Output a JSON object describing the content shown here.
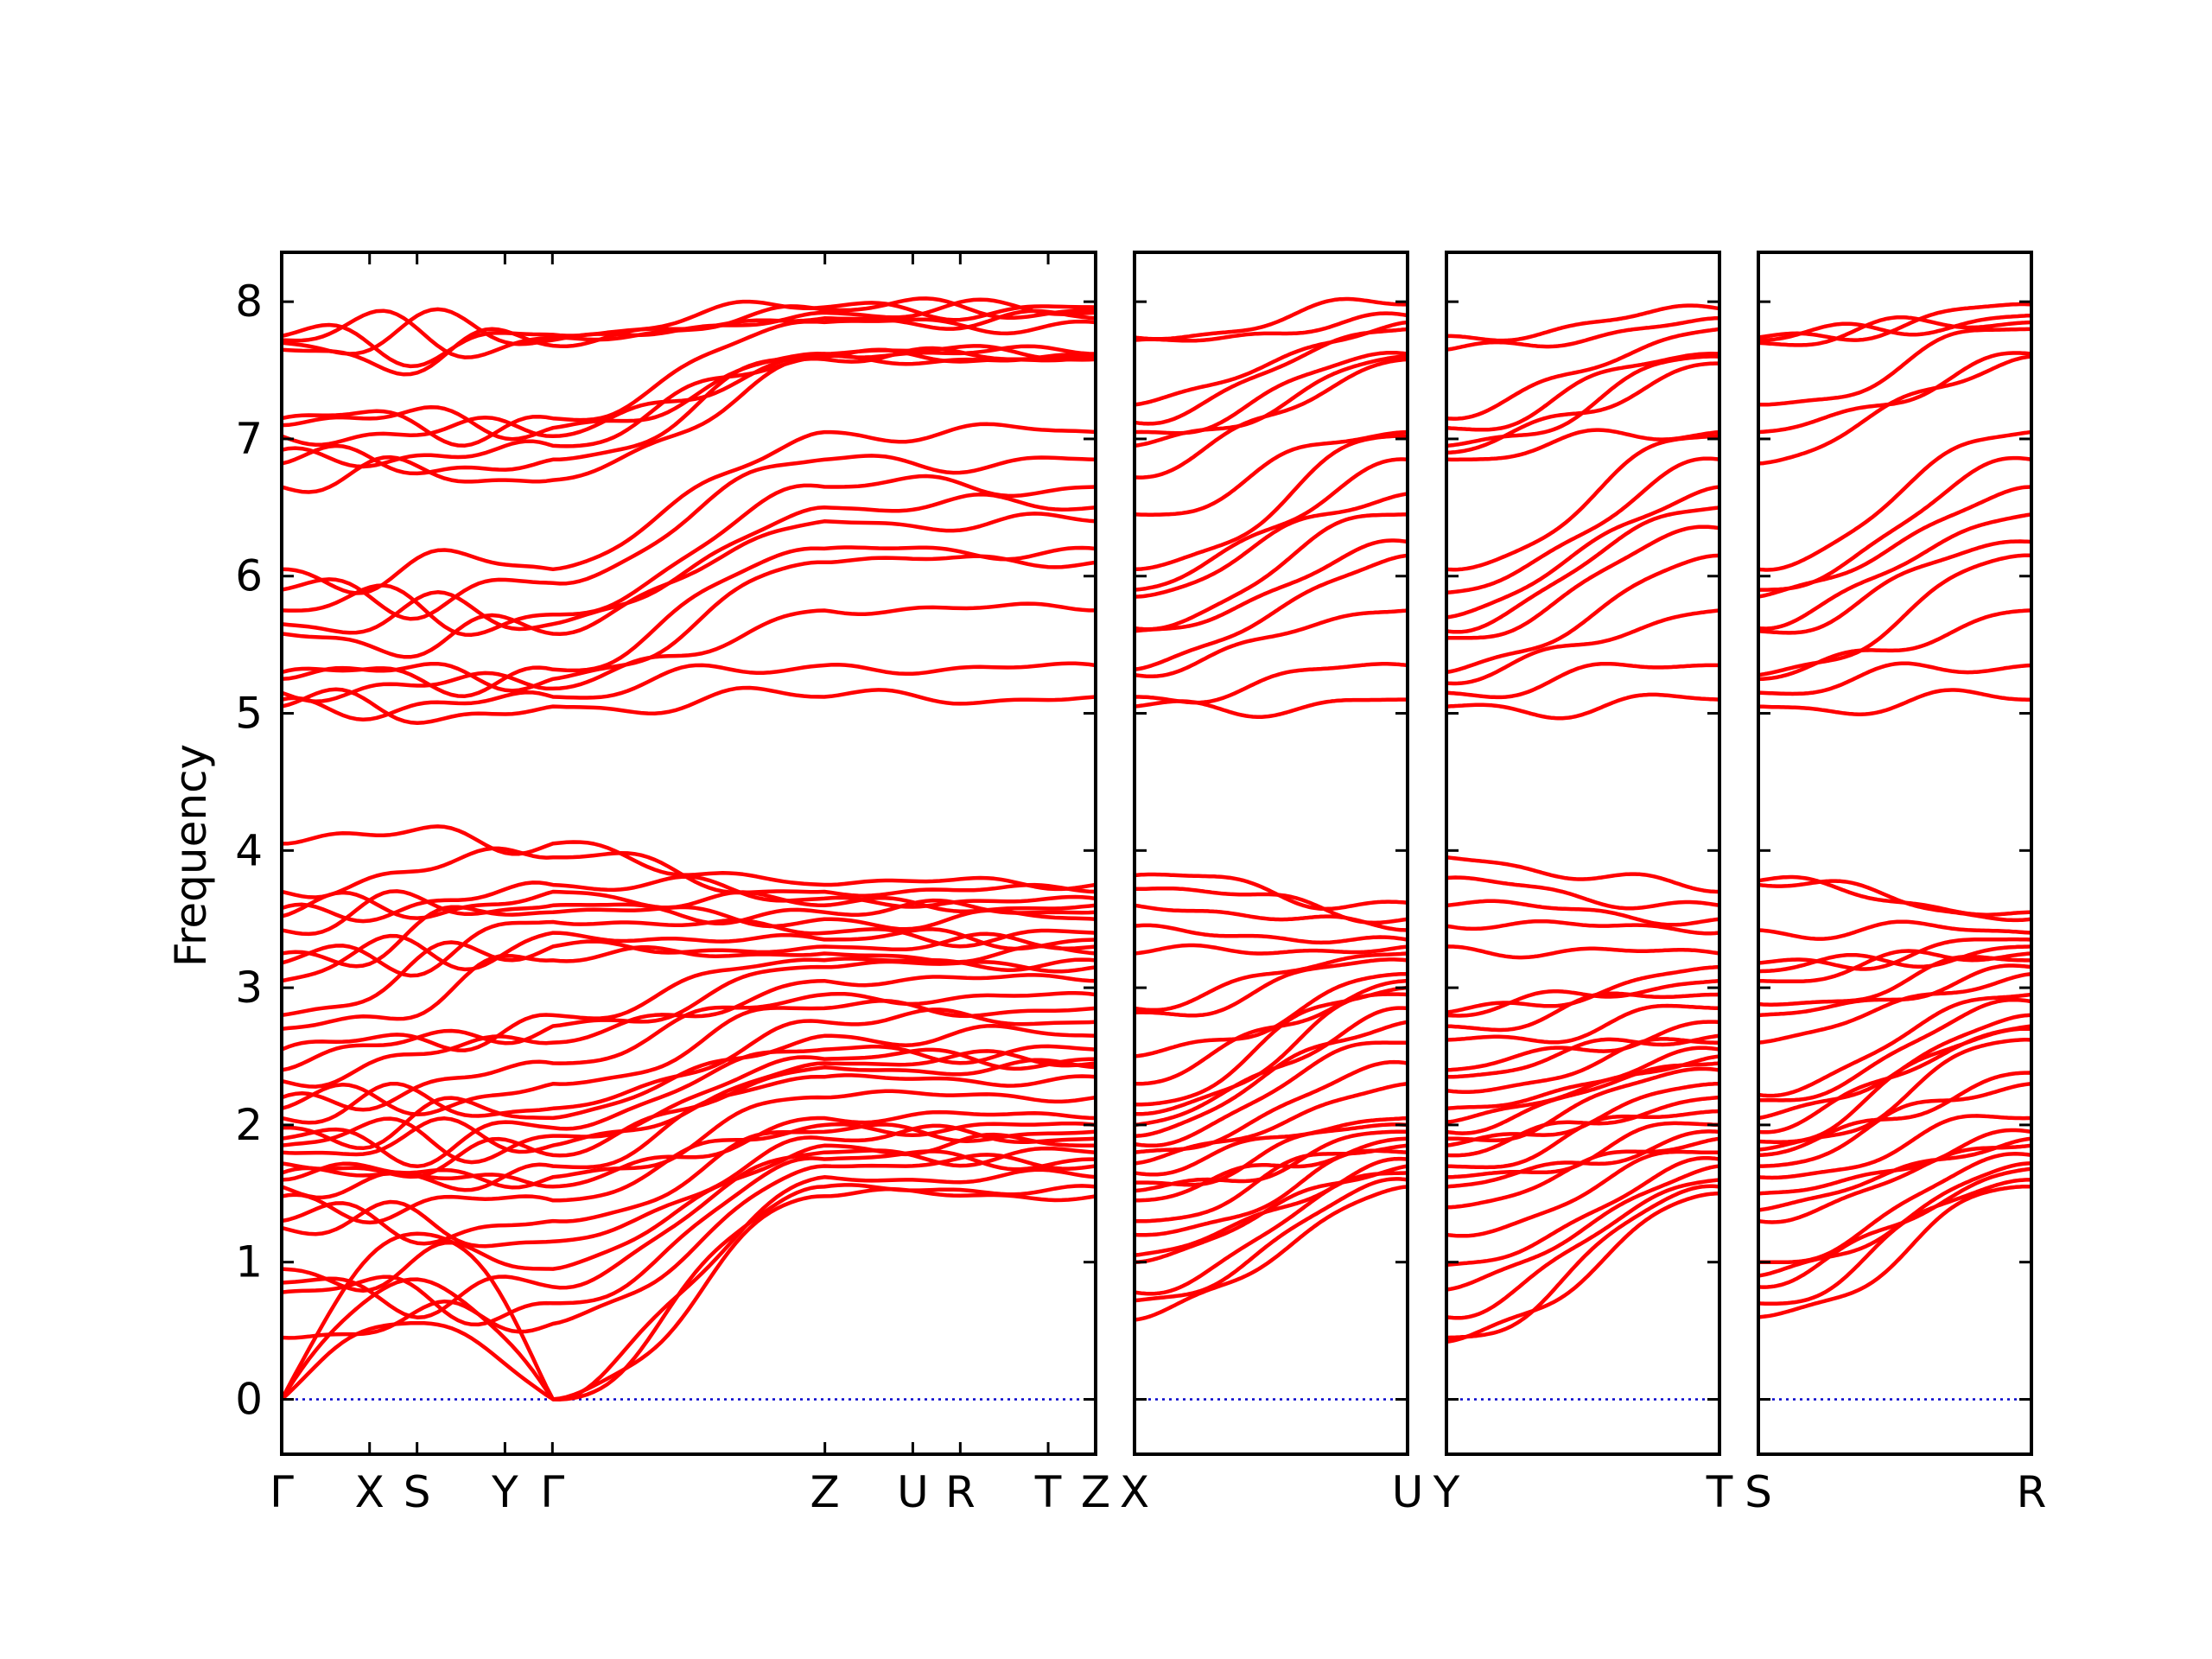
{
  "chart_data": {
    "type": "line",
    "title": "",
    "xlabel": "",
    "ylabel": "Frequency",
    "ylim": [
      -0.4,
      8.36
    ],
    "yticks": [
      0,
      1,
      2,
      3,
      4,
      5,
      6,
      7,
      8
    ],
    "colors": {
      "bands": "#ff0000",
      "zero_line": "#0000cc",
      "frame": "#000000"
    },
    "panels": [
      {
        "path_labels": [
          "Γ",
          "X",
          "S",
          "Y",
          "Γ",
          "Z",
          "U",
          "R",
          "T",
          "Z"
        ],
        "path_positions": [
          0,
          0.5,
          0.77,
          1.27,
          1.54,
          3.09,
          3.59,
          3.86,
          4.36,
          4.63
        ],
        "low_group": {
          "start": [
            0,
            0,
            0,
            0.45,
            0.78,
            0.85,
            0.95,
            1.25,
            1.3,
            1.48,
            1.55,
            1.6,
            1.65,
            1.72,
            1.8,
            1.85,
            1.9,
            1.98,
            2.05,
            2.12,
            2.2,
            2.32,
            2.4,
            2.55,
            2.7,
            2.8,
            3.05,
            3.18,
            3.25,
            3.42,
            3.52,
            3.58,
            3.7,
            4.05
          ],
          "middle": [
            0,
            0,
            0,
            0.55,
            0.7,
            0.82,
            0.95,
            1.15,
            1.3,
            1.45,
            1.55,
            1.62,
            1.7,
            1.78,
            1.85,
            1.92,
            1.98,
            2.05,
            2.12,
            2.3,
            2.45,
            2.6,
            2.72,
            2.8,
            3.2,
            3.3,
            3.4,
            3.48,
            3.55,
            3.6,
            3.7,
            3.75,
            3.95,
            4.05
          ],
          "end": [
            1.48,
            1.55,
            1.62,
            1.7,
            1.75,
            1.8,
            1.85,
            1.9,
            1.95,
            2.0,
            2.05,
            2.2,
            2.35,
            2.42,
            2.45,
            2.48,
            2.55,
            2.65,
            2.75,
            2.85,
            2.95,
            3.05,
            3.15,
            3.2,
            3.25,
            3.3,
            3.35,
            3.4,
            3.5,
            3.55,
            3.6,
            3.65,
            3.7,
            3.75
          ]
        },
        "high_group": {
          "start": [
            5.05,
            5.1,
            5.15,
            5.25,
            5.3,
            5.58,
            5.65,
            5.75,
            5.9,
            6.05,
            6.65,
            6.82,
            6.92,
            7.02,
            7.1,
            7.15,
            7.65,
            7.7,
            7.72,
            7.75
          ],
          "middle": [
            5.05,
            5.12,
            5.18,
            5.25,
            5.32,
            5.58,
            5.65,
            5.72,
            5.95,
            6.05,
            6.7,
            6.85,
            6.95,
            7.02,
            7.08,
            7.15,
            7.68,
            7.72,
            7.74,
            7.76
          ],
          "end": [
            5.12,
            5.35,
            5.75,
            6.1,
            6.2,
            6.4,
            6.5,
            6.65,
            6.85,
            7.05,
            7.58,
            7.6,
            7.6,
            7.62,
            7.62,
            7.85,
            7.88,
            7.92,
            7.94,
            7.96
          ]
        }
      },
      {
        "path_labels": [
          "X",
          "U"
        ],
        "path_positions": [
          0,
          1
        ],
        "low_group": {
          "start": [
            0.58,
            0.72,
            0.78,
            1.0,
            1.05,
            1.2,
            1.3,
            1.45,
            1.52,
            1.58,
            1.65,
            1.72,
            1.8,
            1.86,
            1.92,
            2.0,
            2.08,
            2.15,
            2.3,
            2.5,
            2.82,
            2.85,
            3.25,
            3.45,
            3.6,
            3.72,
            3.82
          ],
          "end": [
            1.55,
            1.6,
            1.65,
            1.7,
            1.75,
            1.8,
            1.85,
            1.9,
            1.95,
            2.0,
            2.05,
            2.3,
            2.45,
            2.6,
            2.75,
            2.85,
            2.95,
            3.0,
            3.05,
            3.1,
            3.2,
            3.25,
            3.3,
            3.35,
            3.42,
            3.5,
            3.62
          ]
        },
        "high_group": {
          "start": [
            5.05,
            5.12,
            5.28,
            5.32,
            5.6,
            5.62,
            5.85,
            5.9,
            6.05,
            6.45,
            6.72,
            6.95,
            7.05,
            7.12,
            7.25,
            7.72,
            7.74
          ],
          "end": [
            5.1,
            5.35,
            5.75,
            6.15,
            6.25,
            6.45,
            6.6,
            6.85,
            7.02,
            7.05,
            7.58,
            7.6,
            7.62,
            7.8,
            7.85,
            7.9,
            7.98
          ]
        }
      },
      {
        "path_labels": [
          "Y",
          "T"
        ],
        "path_positions": [
          0,
          1
        ],
        "low_group": {
          "start": [
            0.42,
            0.45,
            0.6,
            0.8,
            0.98,
            1.2,
            1.4,
            1.55,
            1.62,
            1.7,
            1.78,
            1.85,
            1.9,
            1.95,
            2.02,
            2.12,
            2.25,
            2.35,
            2.4,
            2.62,
            2.72,
            2.8,
            2.82,
            3.3,
            3.45,
            3.6,
            3.8,
            3.95
          ],
          "end": [
            1.5,
            1.55,
            1.6,
            1.7,
            1.75,
            1.8,
            1.9,
            1.95,
            2.0,
            2.1,
            2.2,
            2.3,
            2.4,
            2.45,
            2.5,
            2.55,
            2.6,
            2.65,
            2.75,
            2.85,
            2.95,
            3.05,
            3.15,
            3.25,
            3.4,
            3.5,
            3.6,
            3.7
          ]
        },
        "high_group": {
          "start": [
            5.05,
            5.15,
            5.22,
            5.3,
            5.55,
            5.6,
            5.7,
            5.88,
            6.05,
            6.85,
            6.9,
            6.95,
            7.08,
            7.15,
            7.65,
            7.75
          ],
          "end": [
            5.1,
            5.35,
            5.75,
            6.15,
            6.35,
            6.5,
            6.65,
            6.85,
            7.02,
            7.05,
            7.55,
            7.6,
            7.62,
            7.8,
            7.88,
            7.95
          ]
        }
      },
      {
        "path_labels": [
          "S",
          "R"
        ],
        "path_positions": [
          0,
          1
        ],
        "low_group": {
          "start": [
            0.6,
            0.7,
            0.82,
            0.9,
            1.0,
            1.3,
            1.38,
            1.5,
            1.62,
            1.7,
            1.78,
            1.82,
            1.88,
            1.95,
            2.05,
            2.18,
            2.22,
            2.6,
            2.8,
            2.88,
            3.05,
            3.12,
            3.18,
            3.42,
            3.75,
            3.78
          ],
          "end": [
            1.55,
            1.6,
            1.68,
            1.72,
            1.78,
            1.85,
            1.9,
            1.95,
            2.05,
            2.3,
            2.38,
            2.62,
            2.7,
            2.72,
            2.8,
            2.9,
            2.95,
            3.1,
            3.15,
            3.2,
            3.25,
            3.3,
            3.35,
            3.4,
            3.5,
            3.55
          ]
        },
        "high_group": {
          "start": [
            5.05,
            5.15,
            5.25,
            5.28,
            5.6,
            5.62,
            5.85,
            5.9,
            6.05,
            6.82,
            7.05,
            7.25,
            7.7,
            7.72,
            7.74
          ],
          "end": [
            5.1,
            5.35,
            5.75,
            6.15,
            6.25,
            6.45,
            6.65,
            6.85,
            7.05,
            7.6,
            7.62,
            7.8,
            7.85,
            7.9,
            7.98
          ]
        }
      }
    ]
  }
}
